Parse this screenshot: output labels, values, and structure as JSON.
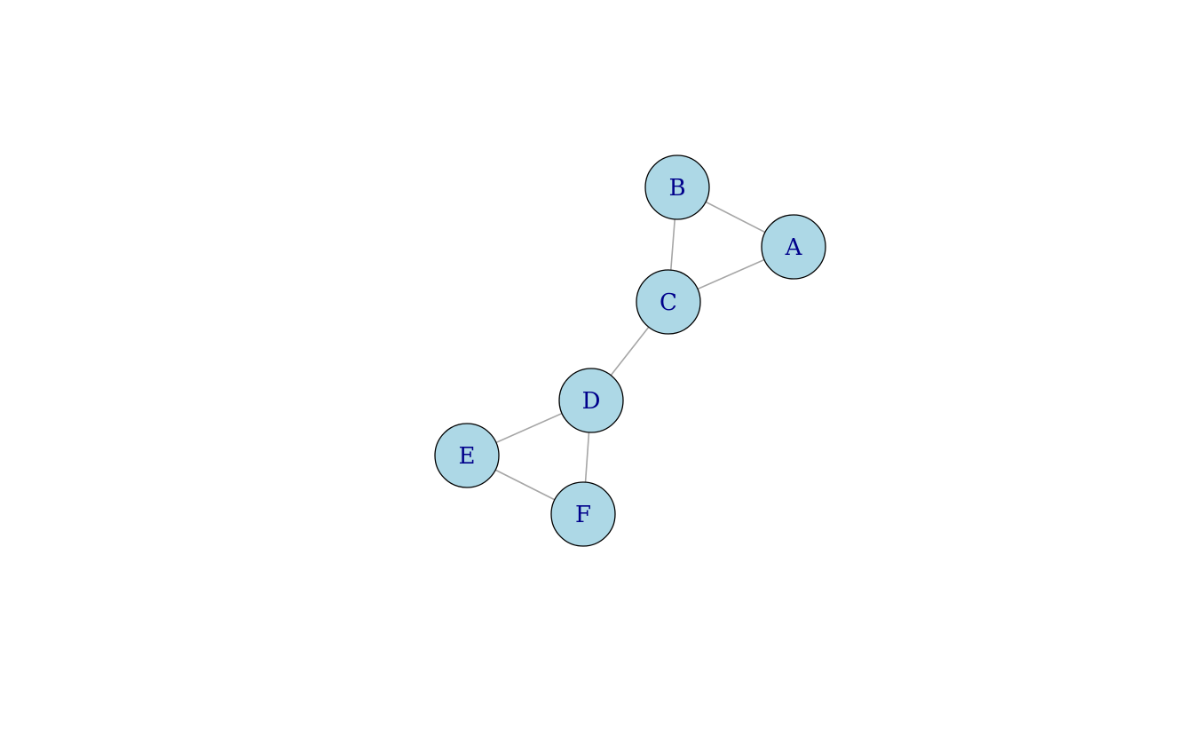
{
  "graph": {
    "node_color": "#add8e6",
    "node_border_color": "#000000",
    "label_color": "#00008b",
    "edge_color": "#a6a6a6",
    "nodes": [
      {
        "id": "A",
        "label": "A"
      },
      {
        "id": "B",
        "label": "B"
      },
      {
        "id": "C",
        "label": "C"
      },
      {
        "id": "D",
        "label": "D"
      },
      {
        "id": "E",
        "label": "E"
      },
      {
        "id": "F",
        "label": "F"
      }
    ],
    "edges": [
      {
        "from": "A",
        "to": "B"
      },
      {
        "from": "A",
        "to": "C"
      },
      {
        "from": "B",
        "to": "C"
      },
      {
        "from": "C",
        "to": "D"
      },
      {
        "from": "D",
        "to": "E"
      },
      {
        "from": "D",
        "to": "F"
      },
      {
        "from": "E",
        "to": "F"
      }
    ]
  }
}
